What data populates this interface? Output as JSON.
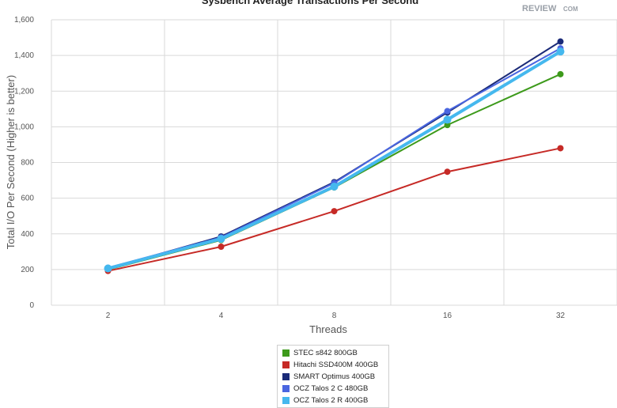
{
  "chart_data": {
    "type": "line",
    "title": "Sysbench Average Transactions Per Second",
    "logo_text": "REVIEW",
    "logo_suffix": "COM",
    "xlabel": "Threads",
    "ylabel": "Total I/O Per Second (Higher is better)",
    "categories": [
      "2",
      "4",
      "8",
      "16",
      "32"
    ],
    "ylim": [
      0,
      1600
    ],
    "yticks": [
      0,
      200,
      400,
      600,
      800,
      1000,
      1200,
      1400,
      1600
    ],
    "ytick_labels": [
      "0",
      "200",
      "400",
      "600",
      "800",
      "1,000",
      "1,200",
      "1,400",
      "1,600"
    ],
    "grid": true,
    "legend_position": "bottom",
    "series": [
      {
        "name": "STEC s842 800GB",
        "color": "#3d9a1b",
        "values": [
          200,
          365,
          660,
          1010,
          1295
        ]
      },
      {
        "name": "Hitachi SSD400M 400GB",
        "color": "#c62a26",
        "values": [
          192,
          328,
          527,
          748,
          880
        ]
      },
      {
        "name": "SMART Optimus 400GB",
        "color": "#1a2a78",
        "values": [
          205,
          385,
          690,
          1080,
          1478
        ]
      },
      {
        "name": "OCZ Talos 2 C 480GB",
        "color": "#4a66e0",
        "values": [
          210,
          380,
          685,
          1088,
          1440
        ]
      },
      {
        "name": "OCZ Talos 2 R 400GB",
        "color": "#45b8ee",
        "values": [
          206,
          372,
          665,
          1040,
          1422
        ]
      }
    ]
  }
}
